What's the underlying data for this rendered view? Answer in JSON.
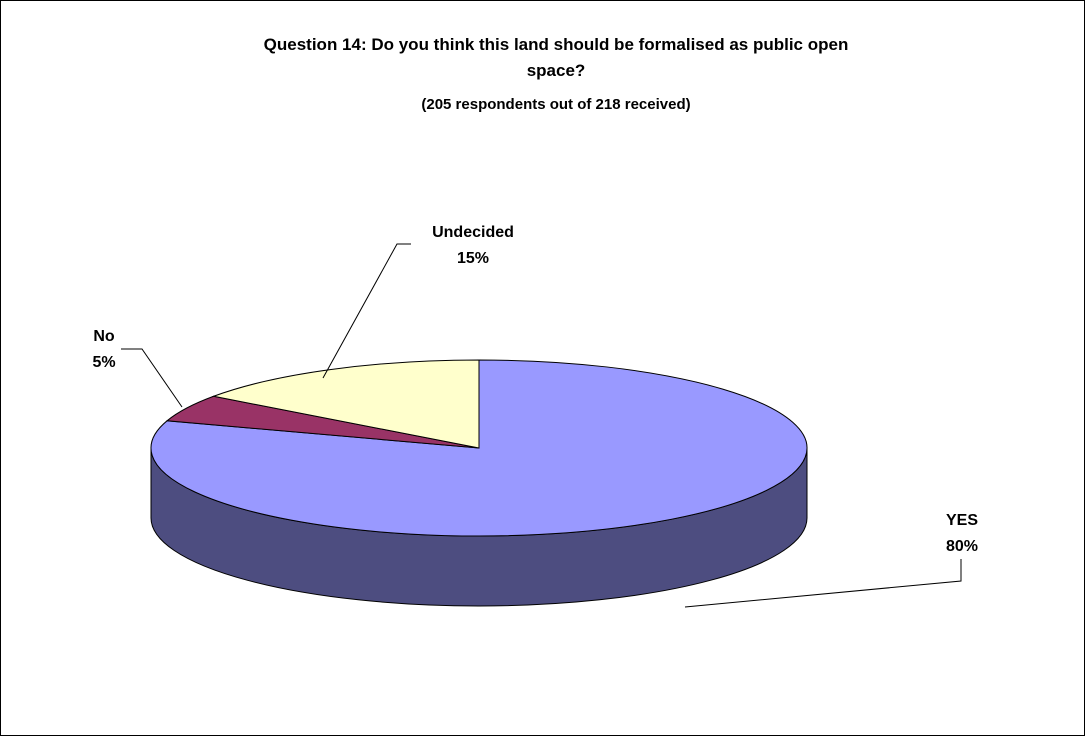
{
  "chart_data": {
    "type": "pie",
    "title_line_1": "Question 14:  Do you think this land should be formalised as public open",
    "title_line_2": "space?",
    "subtitle": "(205 respondents out of 218 received)",
    "slices": [
      {
        "label": "YES",
        "value": 80,
        "value_label": "80%",
        "color": "#9999ff",
        "side_color": "#4d4d80"
      },
      {
        "label": "No",
        "value": 5,
        "value_label": "5%",
        "color": "#993366",
        "side_color": "#4d1a33"
      },
      {
        "label": "Undecided",
        "value": 15,
        "value_label": "15%",
        "color": "#ffffcc",
        "side_color": "#808066"
      }
    ]
  }
}
